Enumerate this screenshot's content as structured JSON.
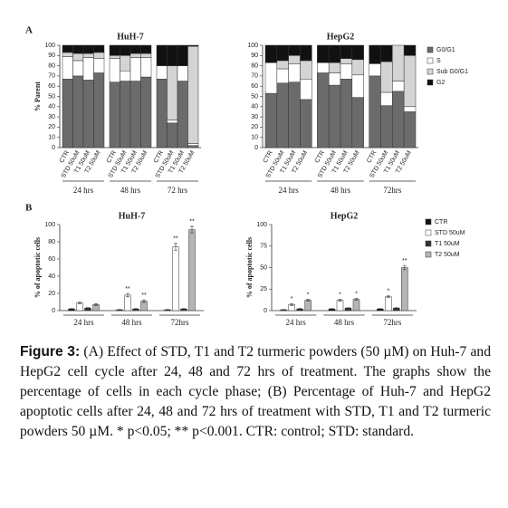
{
  "chart_data": [
    {
      "type": "stacked_bar",
      "panel": "A",
      "title": "HuH-7",
      "ylabel": "% Parent",
      "categories": [
        "CTR",
        "STD 50uM",
        "T1 50uM",
        "T2 50uM",
        "CTR",
        "STD 50uM",
        "T1 50uM",
        "T2 50uM",
        "CTR",
        "STD 50uM",
        "T1 50uM",
        "T2 50uM"
      ],
      "groups": [
        "24 hrs",
        "48 hrs",
        "72 hrs"
      ],
      "series": [
        {
          "color": "#6b6b6b",
          "values": [
            67,
            70,
            66,
            73,
            64,
            65,
            65,
            69,
            67,
            24,
            65,
            2
          ]
        },
        {
          "color": "#ffffff",
          "values": [
            22,
            15,
            22,
            14,
            23,
            10,
            23,
            19,
            13,
            3,
            15,
            2
          ]
        },
        {
          "color": "#d4d4d4",
          "values": [
            4,
            7,
            4,
            6,
            3,
            15,
            4,
            4,
            0,
            53,
            0,
            95
          ]
        },
        {
          "color": "#111111",
          "values": [
            7,
            8,
            8,
            7,
            10,
            10,
            8,
            8,
            20,
            20,
            20,
            1
          ]
        }
      ],
      "ylim": [
        0,
        100
      ],
      "yticks": [
        0,
        10,
        20,
        30,
        40,
        50,
        60,
        70,
        80,
        90,
        100
      ]
    },
    {
      "type": "stacked_bar",
      "title": "HepG2",
      "categories": [
        "CTR",
        "STD 50uM",
        "T1 50uM",
        "T2 50uM",
        "CTR",
        "STD 50uM",
        "T1 50uM",
        "T2 50uM",
        "CTR",
        "STD 50uM",
        "T1 50uM",
        "T2 50uM"
      ],
      "groups": [
        "24 hrs",
        "48 hrs",
        "72hrs"
      ],
      "series": [
        {
          "name": "G0/G1",
          "color": "#6b6b6b",
          "values": [
            53,
            63,
            64,
            47,
            73,
            61,
            67,
            49,
            70,
            41,
            55,
            35
          ]
        },
        {
          "name": "S",
          "color": "#ffffff",
          "values": [
            30,
            14,
            18,
            20,
            10,
            12,
            15,
            22,
            12,
            13,
            10,
            5
          ]
        },
        {
          "name": "Sub G0/G1",
          "color": "#d4d4d4",
          "values": [
            0,
            8,
            8,
            18,
            0,
            10,
            5,
            15,
            0,
            30,
            35,
            50
          ]
        },
        {
          "name": "G2",
          "color": "#111111",
          "values": [
            17,
            15,
            10,
            15,
            17,
            17,
            13,
            14,
            18,
            16,
            0,
            10
          ]
        }
      ],
      "ylim": [
        0,
        100
      ],
      "yticks": [
        0,
        10,
        20,
        30,
        40,
        50,
        60,
        70,
        80,
        90,
        100
      ]
    },
    {
      "type": "bar",
      "panel": "B",
      "title": "HuH-7",
      "ylabel": "% of apoptotic cells",
      "categories": [
        "24 hrs",
        "48 hrs",
        "72hrs"
      ],
      "series": [
        {
          "color": "#111111",
          "values": [
            2,
            1,
            1
          ],
          "errors": [
            0.5,
            0.3,
            0.3
          ],
          "labels": [
            null,
            null,
            null
          ]
        },
        {
          "color": "#ffffff",
          "values": [
            9,
            18,
            74
          ],
          "errors": [
            1,
            2,
            4
          ],
          "labels": [
            null,
            "**",
            "**"
          ]
        },
        {
          "color": "#333333",
          "values": [
            3,
            2,
            2
          ],
          "errors": [
            0.5,
            0.5,
            0.5
          ],
          "labels": [
            null,
            null,
            null
          ]
        },
        {
          "color": "#b5b5b5",
          "values": [
            7,
            11,
            94
          ],
          "errors": [
            1,
            1.5,
            4
          ],
          "labels": [
            null,
            "**",
            "**"
          ]
        }
      ],
      "ylim": [
        0,
        100
      ],
      "yticks": [
        0,
        20,
        40,
        60,
        80,
        100
      ]
    },
    {
      "type": "bar",
      "title": "HepG2",
      "ylabel": "% of apoptotic cells",
      "categories": [
        "24 hrs",
        "48 hrs",
        "72hrs"
      ],
      "series": [
        {
          "name": "CTR",
          "color": "#111111",
          "values": [
            1,
            2,
            2
          ],
          "errors": [
            0.3,
            0.3,
            0.3
          ],
          "labels": [
            null,
            null,
            null
          ]
        },
        {
          "name": "STD 50uM",
          "color": "#ffffff",
          "values": [
            7,
            12,
            16
          ],
          "errors": [
            1,
            1,
            1
          ],
          "labels": [
            "*",
            "*",
            "*"
          ]
        },
        {
          "name": "T1 50uM",
          "color": "#333333",
          "values": [
            2,
            3,
            3
          ],
          "errors": [
            0.4,
            0.4,
            0.4
          ],
          "labels": [
            null,
            null,
            null
          ]
        },
        {
          "name": "T2 50uM",
          "color": "#b5b5b5",
          "values": [
            12,
            13,
            50
          ],
          "errors": [
            1,
            1,
            2.5
          ],
          "labels": [
            "*",
            "*",
            "**"
          ]
        }
      ],
      "ylim": [
        0,
        100
      ],
      "yticks": [
        0,
        25,
        50,
        75,
        100
      ]
    }
  ],
  "caption": {
    "label": "Figure 3:",
    "text": "(A) Effect of STD, T1 and T2 turmeric powders (50 µM) on Huh-7 and HepG2 cell cycle after 24, 48 and 72 hrs of treatment. The graphs show the percentage of cells in each cycle phase; (B) Percentage of Huh-7 and HepG2 apoptotic cells after 24, 48 and 72 hrs of treatment with STD, T1 and T2 turmeric powders 50 µM. * p<0.05; ** p<0.001. CTR: control; STD: standard."
  }
}
